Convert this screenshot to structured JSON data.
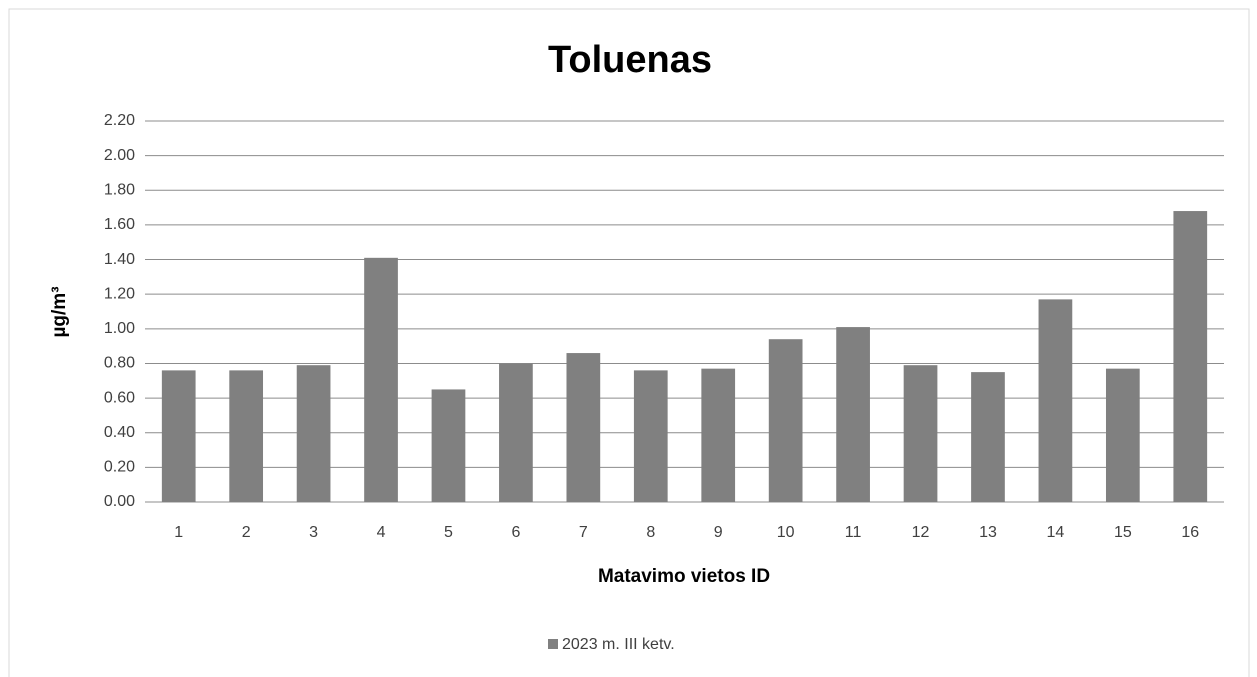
{
  "chart_data": {
    "type": "bar",
    "title": "Toluenas",
    "x_label": "Matavimo vietos ID",
    "y_label": "µg/m³",
    "categories": [
      "1",
      "2",
      "3",
      "4",
      "5",
      "6",
      "7",
      "8",
      "9",
      "10",
      "11",
      "12",
      "13",
      "14",
      "15",
      "16"
    ],
    "series": [
      {
        "name": "2023 m. III ketv.",
        "color": "#808080",
        "values": [
          0.76,
          0.76,
          0.79,
          1.41,
          0.65,
          0.8,
          0.86,
          0.76,
          0.77,
          0.94,
          1.01,
          0.79,
          0.75,
          1.17,
          0.77,
          1.68
        ]
      }
    ],
    "ylim": [
      0,
      2.2
    ],
    "yticks": [
      {
        "value": 0,
        "label": "0.00"
      },
      {
        "value": 0.2,
        "label": "0.20"
      },
      {
        "value": 0.4,
        "label": "0.40"
      },
      {
        "value": 0.6,
        "label": "0.60"
      },
      {
        "value": 0.8,
        "label": "0.80"
      },
      {
        "value": 1.0,
        "label": "1.00"
      },
      {
        "value": 1.2,
        "label": "1.20"
      },
      {
        "value": 1.4,
        "label": "1.40"
      },
      {
        "value": 1.6,
        "label": "1.60"
      },
      {
        "value": 1.8,
        "label": "1.80"
      },
      {
        "value": 2.0,
        "label": "2.00"
      },
      {
        "value": 2.2,
        "label": "2.20"
      }
    ],
    "grid": true,
    "legend": "bottom"
  }
}
